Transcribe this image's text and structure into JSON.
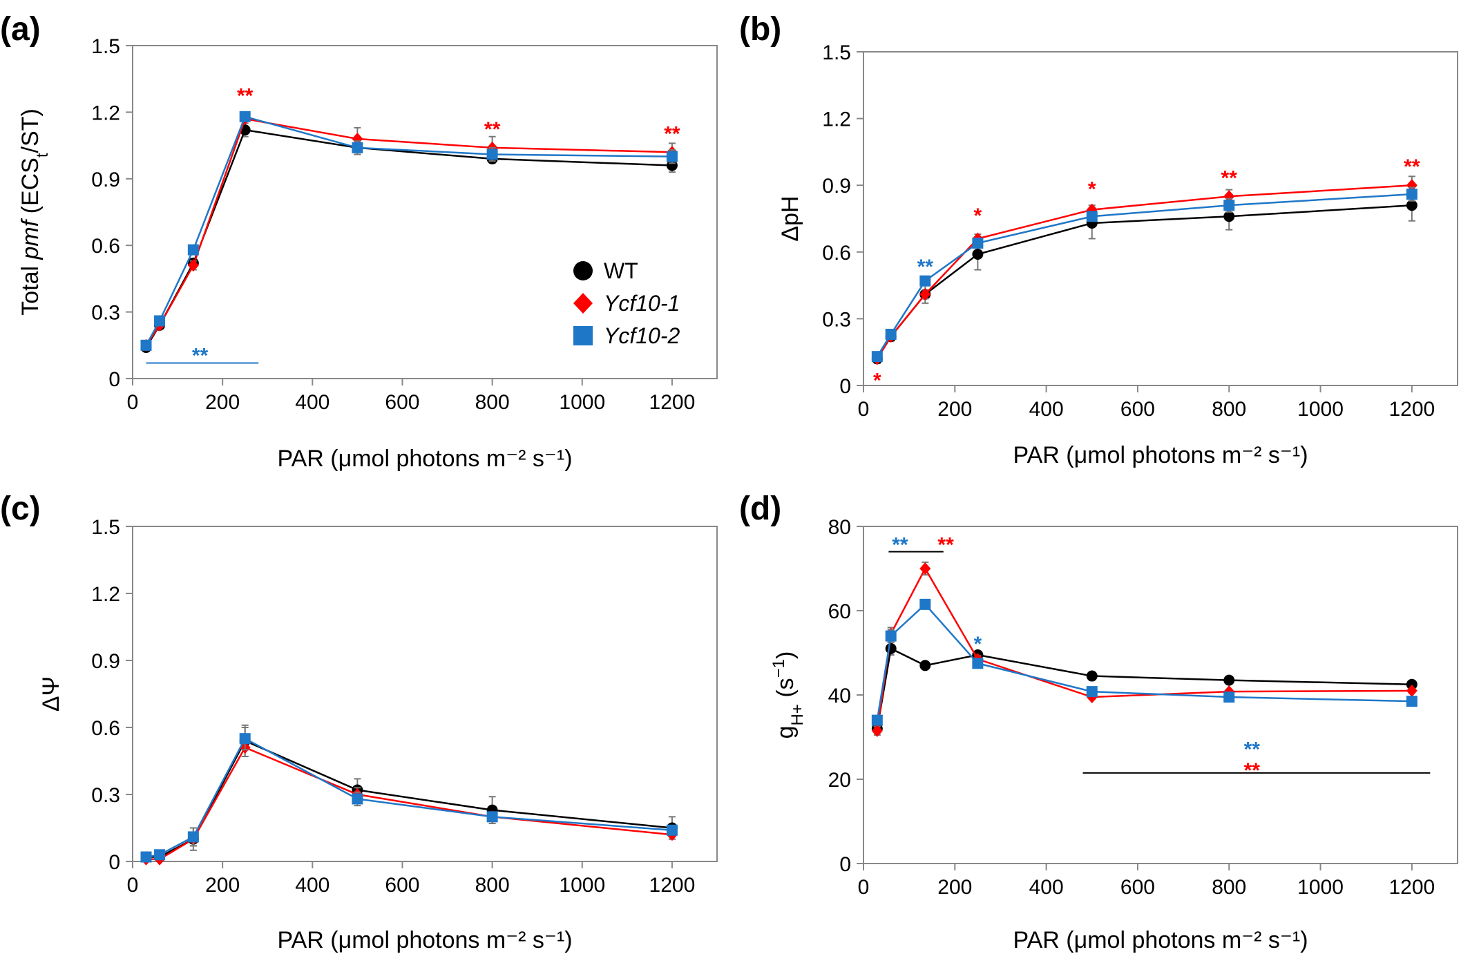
{
  "figure": {
    "x_axis_label": "PAR (μmol photons m⁻² s⁻¹)",
    "legend": [
      {
        "label": "WT",
        "color": "#000000",
        "marker": "circle"
      },
      {
        "label": "Ycf10-1",
        "color": "#ff0000",
        "marker": "diamond"
      },
      {
        "label": "Ycf10-2",
        "color": "#1f77c8",
        "marker": "square"
      }
    ]
  },
  "chart_data": [
    {
      "panel": "(a)",
      "type": "line",
      "ylabel_parts": [
        "Total ",
        "pmf",
        " (ECS",
        "t",
        "/ST)"
      ],
      "xlabel": "PAR (μmol photons m⁻² s⁻¹)",
      "xlim": [
        0,
        1300
      ],
      "ylim": [
        0,
        1.5
      ],
      "xticks": [
        0,
        200,
        400,
        600,
        800,
        1000,
        1200
      ],
      "yticks": [
        0,
        0.3,
        0.6,
        0.9,
        1.2,
        1.5
      ],
      "ytick_labels": [
        "0",
        "0.3",
        "0.6",
        "0.9",
        "1.2",
        "1.5"
      ],
      "x": [
        30,
        60,
        135,
        250,
        500,
        800,
        1200
      ],
      "series": [
        {
          "name": "WT",
          "color": "#000000",
          "marker": "circle",
          "values": [
            0.14,
            0.24,
            0.52,
            1.12,
            1.04,
            0.99,
            0.96
          ],
          "errors": [
            0.01,
            0.01,
            0.02,
            0.03,
            0.03,
            0.02,
            0.03
          ]
        },
        {
          "name": "Ycf10-1",
          "color": "#ff0000",
          "marker": "diamond",
          "values": [
            0.15,
            0.24,
            0.51,
            1.17,
            1.08,
            1.04,
            1.02
          ],
          "errors": [
            0.01,
            0.01,
            0.02,
            0.02,
            0.05,
            0.05,
            0.04
          ]
        },
        {
          "name": "Ycf10-2",
          "color": "#1f77c8",
          "marker": "square",
          "values": [
            0.15,
            0.26,
            0.58,
            1.18,
            1.04,
            1.01,
            1.0
          ],
          "errors": [
            0.01,
            0.01,
            0.02,
            0.02,
            0.03,
            0.03,
            0.03
          ]
        }
      ],
      "annotations": [
        {
          "text": "**",
          "color": "#ff0000",
          "x": 250,
          "y": 1.28
        },
        {
          "text": "**",
          "color": "#ff0000",
          "x": 800,
          "y": 1.13
        },
        {
          "text": "**",
          "color": "#ff0000",
          "x": 1200,
          "y": 1.11
        },
        {
          "text": "**",
          "color": "#1f77c8",
          "x": 150,
          "y": 0.11
        }
      ],
      "lines": [
        {
          "color": "#1f77c8",
          "x1": 30,
          "x2": 280,
          "y": 0.07
        }
      ],
      "legend_position": "right"
    },
    {
      "panel": "(b)",
      "type": "line",
      "ylabel_parts": [
        "ΔpH"
      ],
      "xlabel": "PAR (μmol photons m⁻² s⁻¹)",
      "xlim": [
        0,
        1300
      ],
      "ylim": [
        0,
        1.5
      ],
      "xticks": [
        0,
        200,
        400,
        600,
        800,
        1000,
        1200
      ],
      "yticks": [
        0,
        0.3,
        0.6,
        0.9,
        1.2,
        1.5
      ],
      "ytick_labels": [
        "0",
        "0.3",
        "0.6",
        "0.9",
        "1.2",
        "1.5"
      ],
      "x": [
        30,
        60,
        135,
        250,
        500,
        800,
        1200
      ],
      "series": [
        {
          "name": "WT",
          "color": "#000000",
          "marker": "circle",
          "values": [
            0.12,
            0.22,
            0.41,
            0.59,
            0.73,
            0.76,
            0.81
          ],
          "errors": [
            0.02,
            0.02,
            0.04,
            0.07,
            0.07,
            0.06,
            0.07
          ]
        },
        {
          "name": "Ycf10-1",
          "color": "#ff0000",
          "marker": "diamond",
          "values": [
            0.12,
            0.22,
            0.41,
            0.66,
            0.79,
            0.85,
            0.9
          ],
          "errors": [
            0.01,
            0.01,
            0.02,
            0.02,
            0.02,
            0.03,
            0.04
          ]
        },
        {
          "name": "Ycf10-2",
          "color": "#1f77c8",
          "marker": "square",
          "values": [
            0.13,
            0.23,
            0.47,
            0.64,
            0.76,
            0.81,
            0.86
          ],
          "errors": [
            0.01,
            0.01,
            0.02,
            0.02,
            0.02,
            0.03,
            0.03
          ]
        }
      ],
      "annotations": [
        {
          "text": "*",
          "color": "#ff0000",
          "x": 30,
          "y": 0.03
        },
        {
          "text": "**",
          "color": "#1f77c8",
          "x": 135,
          "y": 0.54
        },
        {
          "text": "*",
          "color": "#ff0000",
          "x": 250,
          "y": 0.77
        },
        {
          "text": "*",
          "color": "#ff0000",
          "x": 500,
          "y": 0.89
        },
        {
          "text": "**",
          "color": "#ff0000",
          "x": 800,
          "y": 0.94
        },
        {
          "text": "**",
          "color": "#ff0000",
          "x": 1200,
          "y": 0.99
        }
      ],
      "lines": []
    },
    {
      "panel": "(c)",
      "type": "line",
      "ylabel_parts": [
        "ΔΨ"
      ],
      "xlabel": "PAR (μmol photons m⁻² s⁻¹)",
      "xlim": [
        0,
        1300
      ],
      "ylim": [
        0,
        1.5
      ],
      "xticks": [
        0,
        200,
        400,
        600,
        800,
        1000,
        1200
      ],
      "yticks": [
        0,
        0.3,
        0.6,
        0.9,
        1.2,
        1.5
      ],
      "ytick_labels": [
        "0",
        "0.3",
        "0.6",
        "0.9",
        "1.2",
        "1.5"
      ],
      "x": [
        30,
        60,
        135,
        250,
        500,
        800,
        1200
      ],
      "series": [
        {
          "name": "WT",
          "color": "#000000",
          "marker": "circle",
          "values": [
            0.02,
            0.02,
            0.1,
            0.54,
            0.32,
            0.23,
            0.15
          ],
          "errors": [
            0.01,
            0.01,
            0.05,
            0.07,
            0.05,
            0.06,
            0.05
          ]
        },
        {
          "name": "Ycf10-1",
          "color": "#ff0000",
          "marker": "diamond",
          "values": [
            0.01,
            0.01,
            0.1,
            0.51,
            0.3,
            0.2,
            0.12
          ],
          "errors": [
            0.01,
            0.01,
            0.03,
            0.04,
            0.03,
            0.02,
            0.02
          ]
        },
        {
          "name": "Ycf10-2",
          "color": "#1f77c8",
          "marker": "square",
          "values": [
            0.02,
            0.03,
            0.11,
            0.55,
            0.28,
            0.2,
            0.14
          ],
          "errors": [
            0.01,
            0.01,
            0.04,
            0.05,
            0.03,
            0.02,
            0.02
          ]
        }
      ],
      "annotations": [],
      "lines": []
    },
    {
      "panel": "(d)",
      "type": "line",
      "ylabel_parts": [
        "g",
        "H+",
        " (s",
        "−1",
        ")"
      ],
      "xlabel": "PAR (μmol photons m⁻² s⁻¹)",
      "xlim": [
        0,
        1300
      ],
      "ylim": [
        0,
        80
      ],
      "xticks": [
        0,
        200,
        400,
        600,
        800,
        1000,
        1200
      ],
      "yticks": [
        0,
        20,
        40,
        60,
        80
      ],
      "ytick_labels": [
        "0",
        "20",
        "40",
        "60",
        "80"
      ],
      "x": [
        30,
        60,
        135,
        250,
        500,
        800,
        1200
      ],
      "series": [
        {
          "name": "WT",
          "color": "#000000",
          "marker": "circle",
          "values": [
            32,
            51,
            47,
            49.5,
            44.5,
            43.5,
            42.5
          ],
          "errors": [
            1,
            1.5,
            0.8,
            0.8,
            0.5,
            0.5,
            0.5
          ]
        },
        {
          "name": "Ycf10-1",
          "color": "#ff0000",
          "marker": "diamond",
          "values": [
            31.5,
            54.5,
            70,
            48.5,
            39.5,
            40.8,
            41
          ],
          "errors": [
            1,
            1.5,
            1.5,
            0.8,
            0.5,
            0.5,
            0.5
          ]
        },
        {
          "name": "Ycf10-2",
          "color": "#1f77c8",
          "marker": "square",
          "values": [
            34,
            54,
            61.5,
            47.5,
            40.8,
            39.5,
            38.5
          ],
          "errors": [
            1,
            1.5,
            1,
            0.8,
            0.5,
            0.5,
            0.5
          ]
        }
      ],
      "annotations": [
        {
          "text": "**",
          "color": "#1f77c8",
          "x": 80,
          "y": 76
        },
        {
          "text": "**",
          "color": "#ff0000",
          "x": 180,
          "y": 76
        },
        {
          "text": "*",
          "color": "#1f77c8",
          "x": 250,
          "y": 52.5
        },
        {
          "text": "**",
          "color": "#1f77c8",
          "x": 850,
          "y": 27.5
        },
        {
          "text": "**",
          "color": "#ff0000",
          "x": 850,
          "y": 22.5
        }
      ],
      "lines": [
        {
          "color": "#000000",
          "x1": 55,
          "x2": 175,
          "y": 74
        },
        {
          "color": "#000000",
          "x1": 480,
          "x2": 1240,
          "y": 21.5
        }
      ]
    }
  ]
}
